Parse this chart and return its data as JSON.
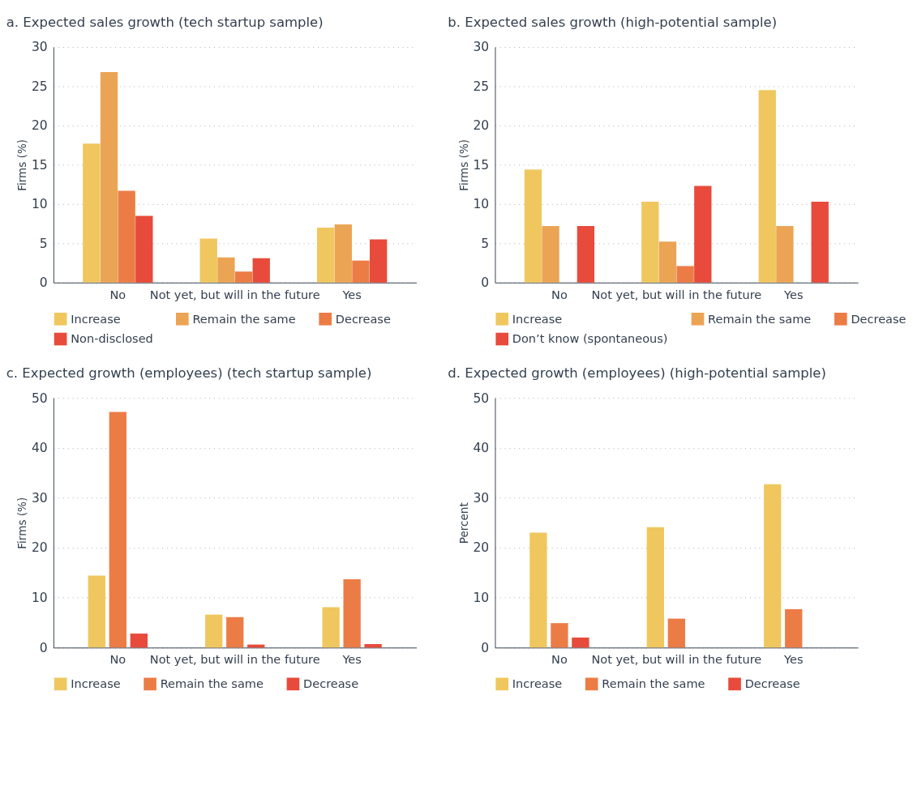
{
  "chart_data": [
    {
      "type": "bar",
      "title": "a. Expected sales growth (tech startup sample)",
      "ylabel": "Firms (%)",
      "categories": [
        "No",
        "Not yet, but will in the future",
        "Yes"
      ],
      "ylim": [
        0,
        30
      ],
      "yticks": [
        0,
        5,
        10,
        15,
        20,
        25,
        30
      ],
      "grid": "y",
      "legend": "bottom",
      "series": [
        {
          "name": "Increase",
          "color": "#efc75e",
          "values": [
            17.7,
            5.6,
            7.0
          ]
        },
        {
          "name": "Remain the same",
          "color": "#eba454",
          "values": [
            26.8,
            3.2,
            7.4
          ]
        },
        {
          "name": "Decrease",
          "color": "#ec7c46",
          "values": [
            11.7,
            1.4,
            2.8
          ]
        },
        {
          "name": "Non-disclosed",
          "color": "#e84a3b",
          "values": [
            8.5,
            3.1,
            5.5
          ]
        }
      ]
    },
    {
      "type": "bar",
      "title": "b. Expected sales growth (high-potential sample)",
      "ylabel": "Firms (%)",
      "categories": [
        "No",
        "Not yet, but will in the future",
        "Yes"
      ],
      "ylim": [
        0,
        30
      ],
      "yticks": [
        0,
        5,
        10,
        15,
        20,
        25,
        30
      ],
      "grid": "y",
      "legend": "bottom",
      "series": [
        {
          "name": "Increase",
          "color": "#efc75e",
          "values": [
            14.4,
            10.3,
            24.5
          ]
        },
        {
          "name": "Remain the same",
          "color": "#eba454",
          "values": [
            7.2,
            5.2,
            7.2
          ]
        },
        {
          "name": "Decrease",
          "color": "#ec7c46",
          "values": [
            null,
            2.1,
            null
          ]
        },
        {
          "name": "Don’t know (spontaneous)",
          "color": "#e84a3b",
          "values": [
            7.2,
            12.3,
            10.3
          ]
        }
      ]
    },
    {
      "type": "bar",
      "title": "c. Expected growth (employees) (tech startup sample)",
      "ylabel": "Firms (%)",
      "categories": [
        "No",
        "Not yet, but will in the future",
        "Yes"
      ],
      "ylim": [
        0,
        50
      ],
      "yticks": [
        0,
        10,
        20,
        30,
        40,
        50
      ],
      "grid": "y",
      "legend": "bottom",
      "series": [
        {
          "name": "Increase",
          "color": "#efc75e",
          "values": [
            14.4,
            6.6,
            8.1
          ]
        },
        {
          "name": "Remain the same",
          "color": "#ec7c46",
          "values": [
            47.2,
            6.1,
            13.7
          ]
        },
        {
          "name": "Decrease",
          "color": "#e84a3b",
          "values": [
            2.8,
            0.6,
            0.7
          ]
        }
      ]
    },
    {
      "type": "bar",
      "title": "d. Expected growth (employees) (high-potential sample)",
      "ylabel": "Percent",
      "categories": [
        "No",
        "Not yet, but will in the future",
        "Yes"
      ],
      "ylim": [
        0,
        50
      ],
      "yticks": [
        0,
        10,
        20,
        30,
        40,
        50
      ],
      "grid": "y",
      "legend": "bottom",
      "series": [
        {
          "name": "Increase",
          "color": "#efc75e",
          "values": [
            23.0,
            24.1,
            32.7
          ]
        },
        {
          "name": "Remain the same",
          "color": "#ec7c46",
          "values": [
            4.9,
            5.8,
            7.7
          ]
        },
        {
          "name": "Decrease",
          "color": "#e84a3b",
          "values": [
            2.0,
            null,
            null
          ]
        }
      ]
    }
  ]
}
